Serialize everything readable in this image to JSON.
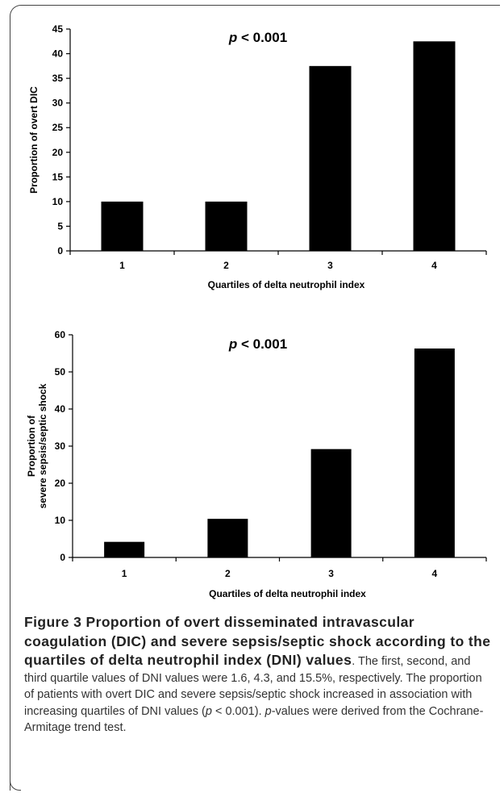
{
  "chart_data": [
    {
      "type": "bar",
      "categories": [
        "1",
        "2",
        "3",
        "4"
      ],
      "values": [
        10,
        10,
        37.5,
        42.5
      ],
      "ylim": [
        0,
        45
      ],
      "yticks": [
        0,
        5,
        10,
        15,
        20,
        25,
        30,
        35,
        40,
        45
      ],
      "ylabel": "Proportion of overt DIC",
      "ylabel_lines": [
        "Proportion of overt DIC"
      ],
      "xlabel": "Quartiles of delta neutrophil index",
      "annotation_prefix": "p",
      "annotation_rest": " < 0.001",
      "bar_color": "#000000",
      "grid": false,
      "title": ""
    },
    {
      "type": "bar",
      "categories": [
        "1",
        "2",
        "3",
        "4"
      ],
      "values": [
        4.2,
        10.4,
        29.2,
        56.3
      ],
      "ylim": [
        0,
        60
      ],
      "yticks": [
        0,
        10,
        20,
        30,
        40,
        50,
        60
      ],
      "ylabel": "Proportion of severe sepsis/septic shock",
      "ylabel_lines": [
        "Proportion of",
        "severe sepsis/septic shock"
      ],
      "xlabel": "Quartiles of delta neutrophil index",
      "annotation_prefix": "p",
      "annotation_rest": " < 0.001",
      "bar_color": "#000000",
      "grid": false,
      "title": ""
    }
  ],
  "caption": {
    "label": "Figure 3",
    "title": "Proportion of overt disseminated intravascular coagulation (DIC) and severe sepsis/septic shock according to the quartiles of delta neutrophil index (DNI) values",
    "text_1": ". The first, second, and third quartile values of DNI values were 1.6, 4.3, and 15.5%, respectively. The proportion of patients with overt DIC and severe sepsis/septic shock increased in association with increasing quartiles of DNI values (",
    "p_symbol": "p",
    "text_2": " < 0.001). ",
    "p_symbol_2": "p",
    "text_3": "-values were derived from the Cochrane-Armitage trend test."
  }
}
